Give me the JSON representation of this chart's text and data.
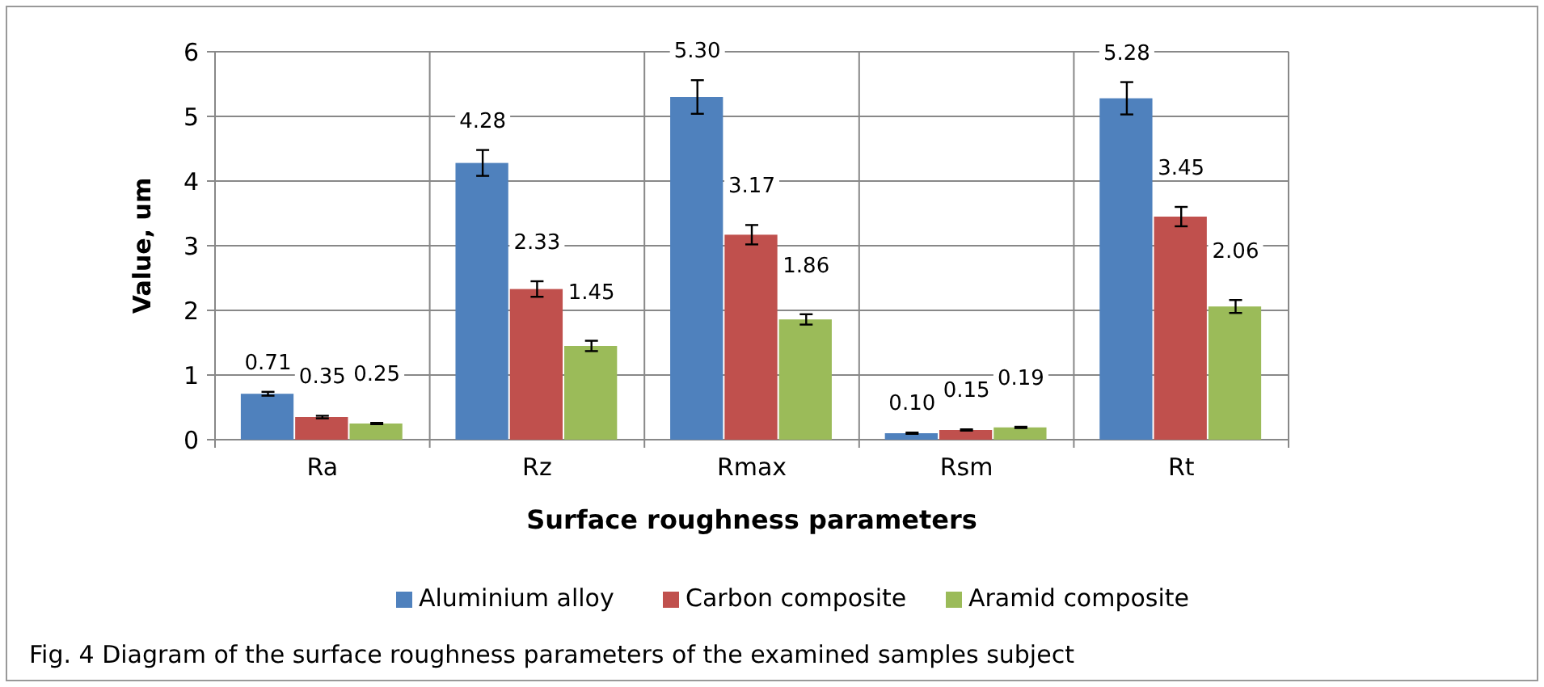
{
  "chart_data": {
    "type": "bar",
    "xlabel": "Surface roughness parameters",
    "ylabel": "Value, um",
    "categories": [
      "Ra",
      "Rz",
      "Rmax",
      "Rsm",
      "Rt"
    ],
    "series": [
      {
        "name": "Aluminium alloy",
        "color": "#4f81bd",
        "values": [
          0.71,
          4.28,
          5.3,
          0.1,
          5.28
        ],
        "value_labels": [
          "0.71",
          "4.28",
          "5.30",
          "0.10",
          "5.28"
        ],
        "errors": [
          0.03,
          0.2,
          0.26,
          0.01,
          0.25
        ]
      },
      {
        "name": "Carbon composite",
        "color": "#c0504d",
        "values": [
          0.35,
          2.33,
          3.17,
          0.15,
          3.45
        ],
        "value_labels": [
          "0.35",
          "2.33",
          "3.17",
          "0.15",
          "3.45"
        ],
        "errors": [
          0.02,
          0.12,
          0.15,
          0.01,
          0.15
        ]
      },
      {
        "name": "Aramid composite",
        "color": "#9bbb59",
        "values": [
          0.25,
          1.45,
          1.86,
          0.19,
          2.06
        ],
        "value_labels": [
          "0.25",
          "1.45",
          "1.86",
          "0.19",
          "2.06"
        ],
        "errors": [
          0.01,
          0.08,
          0.08,
          0.01,
          0.1
        ]
      }
    ],
    "ylim": [
      0,
      6
    ],
    "yticks": [
      0,
      1,
      2,
      3,
      4,
      5,
      6
    ],
    "grid": true,
    "legend": "bottom",
    "annotations": [
      "Fig. 4  Diagram of the surface roughness parameters of the examined samples subject"
    ]
  }
}
